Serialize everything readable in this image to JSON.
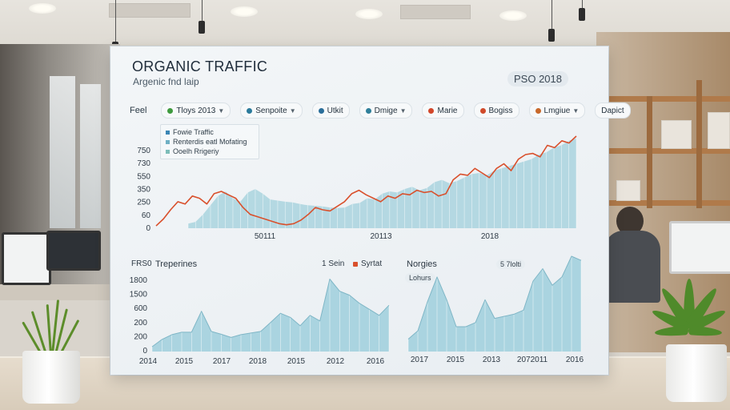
{
  "board": {
    "title": "ORGANIC TRAFFIC",
    "subtitle": "Argenic fnd laip",
    "year_badge": "PSO 2018"
  },
  "filters": {
    "feed_label": "Feel",
    "chips": [
      {
        "label": "Tloys 2013",
        "color": "#3e9a3e",
        "dropdown": true
      },
      {
        "label": "Senpoite",
        "color": "#2a7a9b",
        "dropdown": true
      },
      {
        "label": "Utkit",
        "color": "#2a6e9a",
        "dropdown": false
      },
      {
        "label": "Dmige",
        "color": "#2f7f9a",
        "dropdown": true
      },
      {
        "label": "Marie",
        "color": "#d2462a",
        "dropdown": false
      },
      {
        "label": "Bogiss",
        "color": "#d04a2a",
        "dropdown": false
      },
      {
        "label": "Lmgiue",
        "color": "#c8682a",
        "dropdown": true
      },
      {
        "label": "Dapict",
        "color": null,
        "dropdown": false
      }
    ]
  },
  "colors": {
    "area_fill": "#a9d3de",
    "area_stroke": "#7fb6c6",
    "line_accent": "#d9502c",
    "bar_fill": "#9fcfdc"
  },
  "top_chart": {
    "legend": [
      "Fowie Traffic",
      "Renterdis eatl Mofating",
      "Ooelh Rrigeriy"
    ],
    "legend_colors": [
      "#3a86b5",
      "#6fb0c4",
      "#7dbdb9"
    ]
  },
  "bottom_left_header": {
    "left": "FRS0",
    "title": "Treperines",
    "mid": "1 Sein",
    "right": "Syrtat"
  },
  "bottom_right_header": {
    "title": "Norgies",
    "tag": "Lohurs",
    "badge": "5 7lolti"
  },
  "chart_data": [
    {
      "type": "area",
      "yticks": [
        "750",
        "730",
        "550",
        "350",
        "250",
        "60",
        "0"
      ],
      "xticks": [
        "50111",
        "20113",
        "2018"
      ],
      "series": [
        {
          "name": "Fowie Traffic",
          "values": [
            40,
            55,
            120,
            200,
            280,
            320,
            260,
            230,
            310,
            340,
            300,
            250,
            240,
            230,
            225,
            210,
            200,
            195,
            190,
            180,
            175,
            180,
            210,
            220,
            260,
            250,
            300,
            320,
            310,
            340,
            360,
            330,
            350,
            400,
            420,
            390,
            410,
            440,
            470,
            480,
            460,
            500,
            520,
            540,
            560,
            580,
            600,
            640,
            660,
            700,
            720,
            760,
            780
          ]
        },
        {
          "name": "Renterdis eatl Mofating",
          "values": [
            20,
            80,
            160,
            230,
            210,
            280,
            260,
            210,
            300,
            320,
            290,
            260,
            180,
            120,
            100,
            80,
            60,
            40,
            30,
            40,
            70,
            120,
            180,
            160,
            150,
            190,
            230,
            300,
            330,
            290,
            260,
            230,
            280,
            260,
            300,
            290,
            330,
            310,
            320,
            280,
            300,
            420,
            470,
            460,
            520,
            480,
            440,
            520,
            560,
            500,
            600,
            640,
            650,
            620,
            720,
            700,
            760,
            740,
            800
          ]
        }
      ]
    },
    {
      "type": "area",
      "yticks": [
        "1800",
        "1500",
        "600",
        "200",
        "200",
        "0"
      ],
      "xticks": [
        "2014",
        "2015",
        "2017",
        "2018",
        "2015",
        "2012",
        "2016"
      ],
      "values": [
        120,
        300,
        420,
        480,
        480,
        1000,
        500,
        430,
        350,
        420,
        460,
        500,
        720,
        950,
        850,
        640,
        900,
        760,
        1800,
        1500,
        1400,
        1200,
        1050,
        900,
        1150
      ]
    },
    {
      "type": "area",
      "xticks": [
        "2017",
        "2015",
        "2013",
        "2072011",
        "2016"
      ],
      "values": [
        300,
        500,
        1200,
        1800,
        1250,
        600,
        600,
        700,
        1250,
        800,
        850,
        900,
        1000,
        1700,
        2000,
        1600,
        1800,
        2300,
        2200
      ]
    }
  ]
}
